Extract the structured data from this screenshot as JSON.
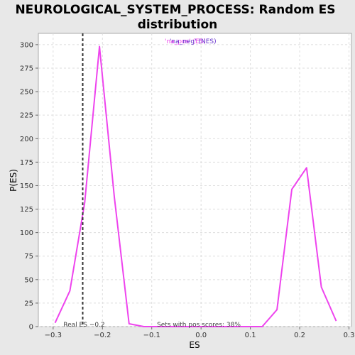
{
  "chart_data": {
    "type": "line",
    "title": "NEUROLOGICAL_SYSTEM_PROCESS: Random ES",
    "subtitle": "distribution",
    "xlabel": "ES",
    "ylabel": "P(ES)",
    "xlim": [
      -0.33,
      0.305
    ],
    "ylim": [
      0,
      312
    ],
    "xticks": [
      -0.3,
      -0.2,
      -0.1,
      0.0,
      0.1,
      0.2,
      0.3
    ],
    "xtick_labels": [
      "−0.3",
      "−0.2",
      "−0.1",
      "0.0",
      "0.1",
      "0.2",
      "0.3"
    ],
    "yticks": [
      0,
      25,
      50,
      75,
      100,
      125,
      150,
      175,
      200,
      225,
      250,
      275,
      300
    ],
    "grid": true,
    "series": [
      {
        "name": "",
        "color": "#ee44ee",
        "x": [
          -0.296,
          -0.266,
          -0.236,
          -0.206,
          -0.176,
          -0.146,
          -0.116,
          -0.086,
          -0.056,
          -0.026,
          0.004,
          0.034,
          0.064,
          0.094,
          0.124,
          0.154,
          0.184,
          0.214,
          0.244,
          0.274
        ],
        "y": [
          4,
          38,
          132,
          298,
          138,
          3,
          0,
          0,
          0,
          0,
          0,
          0,
          0,
          0,
          0,
          18,
          146,
          169,
          42,
          6
        ]
      }
    ],
    "real_es": {
      "value": -0.24,
      "label": "Real ES −0.2",
      "color": "#333333"
    },
    "pos_scores_label": "Sets with pos scores: 38%",
    "legend_overlap": {
      "text1": "'na_pos' (ES)",
      "text1_color": "#ee44ee",
      "text2": "'na_neg' (NES)",
      "text2_color": "#6633cc"
    }
  }
}
